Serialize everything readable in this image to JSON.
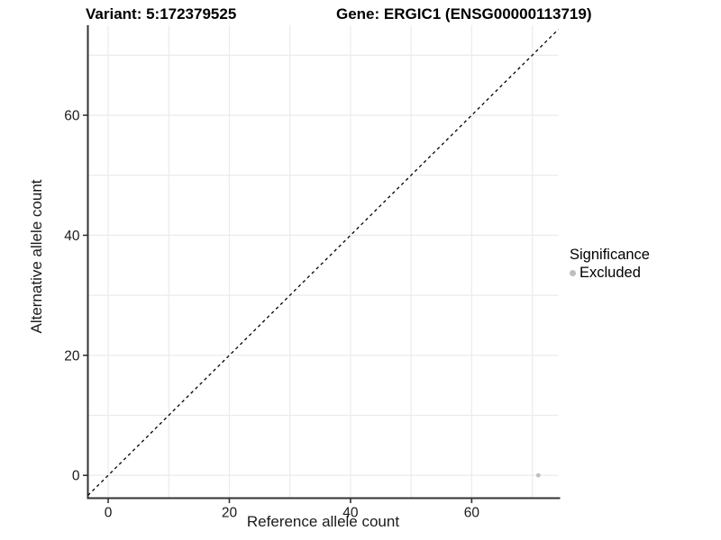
{
  "page": {
    "background": "#ffffff"
  },
  "chart_data": {
    "type": "scatter",
    "titles": {
      "variant": "Variant: 5:172379525",
      "gene": "Gene: ERGIC1 (ENSG00000113719)"
    },
    "xlabel": "Reference allele count",
    "ylabel": "Alternative allele count",
    "x_ticks": [
      0,
      20,
      40,
      60
    ],
    "y_ticks": [
      0,
      20,
      40,
      60
    ],
    "xlim": [
      -3.35,
      74.3
    ],
    "ylim": [
      -3.8,
      75.0
    ],
    "grid": {
      "show": true,
      "step": 10,
      "color": "#ebebeb"
    },
    "reference_line": {
      "type": "identity y = x",
      "dashed": true,
      "color": "#000000"
    },
    "series": [
      {
        "name": "Excluded",
        "color": "#bebebe",
        "points": [
          {
            "x": 71,
            "y": 0
          }
        ]
      }
    ],
    "legend": {
      "title": "Significance",
      "position": "right",
      "items": [
        {
          "label": "Excluded",
          "color": "#bebebe"
        }
      ]
    },
    "axis_color": "#333333",
    "tick_label_color": "#1a1a1a"
  }
}
